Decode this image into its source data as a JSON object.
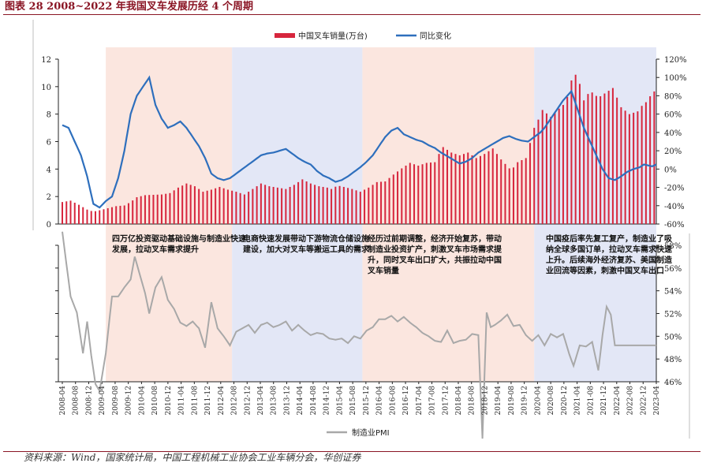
{
  "title": "图表 28   2008~2022 年我国叉车发展历经 4 个周期",
  "source": "资料来源：Wind，国家统计局，中国工程机械工业协会工业车辆分会，华创证券",
  "colors": {
    "bar": "#d7263d",
    "line": "#2e6fbd",
    "pmi": "#a8a8a8",
    "phase_pink": "#fbe6df",
    "phase_blue": "#e3e7f6",
    "title": "#8a1524"
  },
  "chart_data": [
    {
      "type": "bar+line",
      "name": "top-panel",
      "legend": [
        "中国叉车销量(万台)",
        "同比变化"
      ],
      "y_left": {
        "min": 0,
        "max": 12,
        "ticks": [
          "0",
          "2",
          "4",
          "6",
          "8",
          "10",
          "12"
        ]
      },
      "y_right": {
        "min": -60,
        "max": 120,
        "ticks": [
          "-60%",
          "-40%",
          "-20%",
          "0%",
          "20%",
          "40%",
          "60%",
          "80%",
          "100%",
          "120%"
        ]
      },
      "month_count": 184,
      "bar_anchors": [
        [
          0,
          1.6
        ],
        [
          4,
          1.7
        ],
        [
          8,
          1.4
        ],
        [
          12,
          1.05
        ],
        [
          15,
          0.9
        ],
        [
          18,
          1.0
        ],
        [
          22,
          1.15
        ],
        [
          26,
          1.3
        ],
        [
          30,
          1.35
        ],
        [
          33,
          1.6
        ],
        [
          36,
          1.95
        ],
        [
          40,
          2.1
        ],
        [
          48,
          2.15
        ],
        [
          52,
          2.25
        ],
        [
          56,
          2.65
        ],
        [
          60,
          2.95
        ],
        [
          64,
          2.75
        ],
        [
          68,
          2.35
        ],
        [
          72,
          2.5
        ],
        [
          76,
          2.7
        ],
        [
          80,
          2.5
        ],
        [
          84,
          2.35
        ],
        [
          88,
          2.15
        ],
        [
          92,
          2.55
        ],
        [
          96,
          2.95
        ],
        [
          100,
          2.75
        ],
        [
          104,
          2.65
        ],
        [
          108,
          2.55
        ],
        [
          112,
          2.85
        ],
        [
          116,
          3.25
        ],
        [
          120,
          2.95
        ],
        [
          124,
          2.75
        ],
        [
          128,
          2.65
        ],
        [
          130,
          2.55
        ],
        [
          133,
          2.8
        ],
        [
          136,
          2.7
        ],
        [
          140,
          2.55
        ],
        [
          144,
          2.35
        ],
        [
          148,
          2.65
        ],
        [
          152,
          3.05
        ],
        [
          156,
          3.1
        ],
        [
          160,
          3.6
        ],
        [
          164,
          4.05
        ],
        [
          168,
          4.45
        ],
        [
          172,
          4.25
        ],
        [
          176,
          4.45
        ],
        [
          180,
          4.5
        ],
        [
          182,
          5.1
        ],
        [
          184,
          5.6
        ],
        [
          188,
          5.2
        ],
        [
          192,
          5.0
        ],
        [
          196,
          5.2
        ],
        [
          200,
          4.8
        ],
        [
          204,
          5.1
        ],
        [
          208,
          5.5
        ],
        [
          212,
          4.7
        ],
        [
          216,
          4.05
        ],
        [
          219,
          4.15
        ],
        [
          220,
          4.5
        ],
        [
          224,
          4.8
        ],
        [
          228,
          7.0
        ],
        [
          230,
          7.6
        ],
        [
          232,
          8.3
        ],
        [
          236,
          7.8
        ],
        [
          240,
          8.4
        ],
        [
          243,
          8.8
        ],
        [
          245,
          9.7
        ],
        [
          247,
          11.2
        ],
        [
          250,
          10.2
        ],
        [
          252,
          9.0
        ],
        [
          255,
          9.7
        ],
        [
          259,
          9.2
        ],
        [
          263,
          9.6
        ],
        [
          266,
          9.9
        ],
        [
          270,
          8.5
        ],
        [
          274,
          8.0
        ],
        [
          278,
          8.2
        ],
        [
          280,
          8.6
        ],
        [
          283,
          9.0
        ],
        [
          285,
          9.6
        ],
        [
          287,
          9.7
        ]
      ],
      "line_anchors": [
        [
          0,
          48
        ],
        [
          3,
          45
        ],
        [
          6,
          30
        ],
        [
          9,
          15
        ],
        [
          12,
          -8
        ],
        [
          15,
          -38
        ],
        [
          18,
          -42
        ],
        [
          21,
          -35
        ],
        [
          24,
          -30
        ],
        [
          27,
          -10
        ],
        [
          30,
          20
        ],
        [
          33,
          60
        ],
        [
          36,
          80
        ],
        [
          39,
          90
        ],
        [
          42,
          100
        ],
        [
          45,
          70
        ],
        [
          48,
          55
        ],
        [
          51,
          45
        ],
        [
          54,
          48
        ],
        [
          57,
          52
        ],
        [
          60,
          45
        ],
        [
          63,
          35
        ],
        [
          66,
          25
        ],
        [
          69,
          12
        ],
        [
          72,
          -5
        ],
        [
          75,
          -10
        ],
        [
          78,
          -12
        ],
        [
          81,
          -10
        ],
        [
          84,
          -5
        ],
        [
          87,
          0
        ],
        [
          90,
          5
        ],
        [
          93,
          10
        ],
        [
          96,
          15
        ],
        [
          99,
          17
        ],
        [
          102,
          18
        ],
        [
          105,
          20
        ],
        [
          108,
          22
        ],
        [
          111,
          17
        ],
        [
          114,
          12
        ],
        [
          117,
          8
        ],
        [
          120,
          5
        ],
        [
          123,
          -2
        ],
        [
          126,
          -7
        ],
        [
          129,
          -10
        ],
        [
          132,
          -14
        ],
        [
          135,
          -12
        ],
        [
          138,
          -8
        ],
        [
          141,
          -3
        ],
        [
          144,
          2
        ],
        [
          147,
          8
        ],
        [
          150,
          15
        ],
        [
          153,
          25
        ],
        [
          156,
          35
        ],
        [
          159,
          42
        ],
        [
          162,
          45
        ],
        [
          165,
          38
        ],
        [
          168,
          35
        ],
        [
          171,
          32
        ],
        [
          174,
          30
        ],
        [
          177,
          26
        ],
        [
          180,
          23
        ],
        [
          183,
          18
        ],
        [
          186,
          14
        ],
        [
          189,
          10
        ],
        [
          192,
          6
        ],
        [
          195,
          8
        ],
        [
          198,
          12
        ],
        [
          201,
          18
        ],
        [
          204,
          22
        ],
        [
          207,
          26
        ],
        [
          210,
          30
        ],
        [
          213,
          34
        ],
        [
          216,
          36
        ],
        [
          219,
          33
        ],
        [
          222,
          31
        ],
        [
          225,
          30
        ],
        [
          228,
          35
        ],
        [
          231,
          40
        ],
        [
          233,
          45
        ],
        [
          236,
          55
        ],
        [
          239,
          65
        ],
        [
          242,
          75
        ],
        [
          244,
          80
        ],
        [
          246,
          85
        ],
        [
          249,
          65
        ],
        [
          252,
          45
        ],
        [
          255,
          30
        ],
        [
          258,
          15
        ],
        [
          261,
          0
        ],
        [
          264,
          -10
        ],
        [
          267,
          -12
        ],
        [
          270,
          -8
        ],
        [
          273,
          -3
        ],
        [
          276,
          0
        ],
        [
          279,
          2
        ],
        [
          281,
          5
        ],
        [
          283,
          4
        ],
        [
          285,
          3
        ],
        [
          287,
          5
        ]
      ]
    },
    {
      "type": "line",
      "name": "bottom-panel",
      "legend": [
        "制造业PMI"
      ],
      "y_right": {
        "min": 46,
        "max": 58,
        "ticks": [
          "46%",
          "48%",
          "50%",
          "52%",
          "54%",
          "56%",
          "58%"
        ]
      },
      "x_labels": [
        "2008-04",
        "2008-08",
        "2008-12",
        "2009-04",
        "2009-08",
        "2009-12",
        "2010-04",
        "2010-08",
        "2010-12",
        "2011-04",
        "2011-08",
        "2011-12",
        "2012-04",
        "2012-08",
        "2012-12",
        "2013-04",
        "2013-08",
        "2013-12",
        "2014-04",
        "2014-08",
        "2014-12",
        "2015-04",
        "2015-08",
        "2015-12",
        "2016-04",
        "2016-08",
        "2016-12",
        "2017-04",
        "2017-08",
        "2017-12",
        "2018-04",
        "2018-08",
        "2018-12",
        "2019-04",
        "2019-08",
        "2019-12",
        "2020-04",
        "2020-08",
        "2020-12",
        "2021-04",
        "2021-08",
        "2021-12",
        "2022-04",
        "2022-08",
        "2022-12",
        "2023-04"
      ],
      "pmi_anchors": [
        [
          0,
          59.2
        ],
        [
          4,
          53.5
        ],
        [
          7,
          52.1
        ],
        [
          10,
          48.5
        ],
        [
          12,
          51.3
        ],
        [
          14,
          48.3
        ],
        [
          16,
          45.8
        ],
        [
          18,
          45.2
        ],
        [
          21,
          48.5
        ],
        [
          24,
          53.5
        ],
        [
          27,
          53.5
        ],
        [
          30,
          54.3
        ],
        [
          33,
          55.0
        ],
        [
          35,
          57.0
        ],
        [
          37,
          55.7
        ],
        [
          40,
          53.8
        ],
        [
          42,
          52.0
        ],
        [
          45,
          54.3
        ],
        [
          48,
          55.2
        ],
        [
          51,
          53.2
        ],
        [
          54,
          52.4
        ],
        [
          57,
          51.2
        ],
        [
          60,
          50.9
        ],
        [
          63,
          51.3
        ],
        [
          66,
          50.7
        ],
        [
          69,
          49.0
        ],
        [
          72,
          53.0
        ],
        [
          75,
          50.7
        ],
        [
          78,
          50.0
        ],
        [
          81,
          49.2
        ],
        [
          84,
          50.4
        ],
        [
          87,
          50.7
        ],
        [
          90,
          51.0
        ],
        [
          93,
          50.3
        ],
        [
          96,
          51.0
        ],
        [
          99,
          51.2
        ],
        [
          102,
          50.8
        ],
        [
          105,
          51.0
        ],
        [
          108,
          51.3
        ],
        [
          111,
          50.5
        ],
        [
          114,
          51.0
        ],
        [
          117,
          50.5
        ],
        [
          120,
          50.1
        ],
        [
          123,
          50.3
        ],
        [
          126,
          50.2
        ],
        [
          129,
          49.8
        ],
        [
          132,
          49.7
        ],
        [
          135,
          49.8
        ],
        [
          138,
          49.4
        ],
        [
          141,
          50.0
        ],
        [
          144,
          49.8
        ],
        [
          147,
          50.5
        ],
        [
          150,
          50.8
        ],
        [
          153,
          51.5
        ],
        [
          156,
          51.5
        ],
        [
          159,
          51.8
        ],
        [
          162,
          51.3
        ],
        [
          165,
          51.7
        ],
        [
          168,
          51.2
        ],
        [
          171,
          50.8
        ],
        [
          174,
          50.3
        ],
        [
          177,
          50.0
        ],
        [
          180,
          49.6
        ],
        [
          183,
          49.5
        ],
        [
          186,
          50.5
        ],
        [
          189,
          49.4
        ],
        [
          192,
          49.6
        ],
        [
          195,
          49.7
        ],
        [
          198,
          50.2
        ],
        [
          201,
          50.1
        ],
        [
          203,
          41.0
        ],
        [
          205,
          52.1
        ],
        [
          207,
          50.8
        ],
        [
          209,
          51.0
        ],
        [
          212,
          51.4
        ],
        [
          215,
          51.9
        ],
        [
          218,
          50.9
        ],
        [
          221,
          51.0
        ],
        [
          224,
          50.1
        ],
        [
          227,
          49.6
        ],
        [
          230,
          50.1
        ],
        [
          233,
          49.2
        ],
        [
          236,
          50.2
        ],
        [
          239,
          49.9
        ],
        [
          242,
          50.2
        ],
        [
          245,
          48.4
        ],
        [
          247,
          47.4
        ],
        [
          250,
          49.2
        ],
        [
          253,
          49.1
        ],
        [
          256,
          49.5
        ],
        [
          259,
          47.0
        ],
        [
          261,
          50.1
        ],
        [
          263,
          52.6
        ],
        [
          265,
          51.9
        ],
        [
          267,
          49.2
        ]
      ]
    }
  ],
  "phases": [
    {
      "label": "四万亿投资驱动基础设施与制造业快速发展，拉动叉车需求提升"
    },
    {
      "label": "电商快速发展带动下游物流仓储设施建设，加大对叉车等搬运工具的需求"
    },
    {
      "label": "经历过前期调整，经济开始复苏，带动制造业投资扩产，刺激叉车市场需求提升，同时叉车出口扩大，共振拉动中国叉车销量"
    },
    {
      "label": "中国疫后率先复工复产，制造业了吸纳全球多国订单，拉动叉车需求快速上升。后续海外经济复苏、美国制造业回流等因素，刺激中国叉车出口"
    }
  ]
}
